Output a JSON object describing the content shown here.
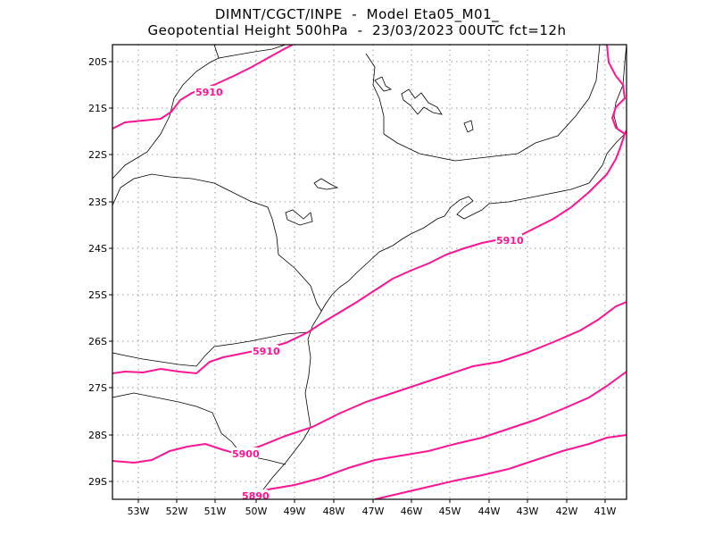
{
  "title": {
    "line1": "DIMNT/CGCT/INPE  -  Model Eta05_M01_",
    "line2": "Geopotential Height 500hPa  -  23/03/2023 00UTC fct=12h"
  },
  "axes": {
    "lat_ticks": [
      "20S",
      "21S",
      "22S",
      "23S",
      "24S",
      "25S",
      "26S",
      "27S",
      "28S",
      "29S"
    ],
    "lon_ticks": [
      "53W",
      "52W",
      "51W",
      "50W",
      "49W",
      "48W",
      "47W",
      "46W",
      "45W",
      "44W",
      "43W",
      "42W",
      "41W"
    ]
  },
  "contours": {
    "color": "#ff1493",
    "labels": [
      "5910",
      "5910",
      "5910",
      "5900",
      "5890"
    ]
  },
  "colors": {
    "coast": "#000000",
    "grid": "#999999",
    "frame": "#000000"
  }
}
